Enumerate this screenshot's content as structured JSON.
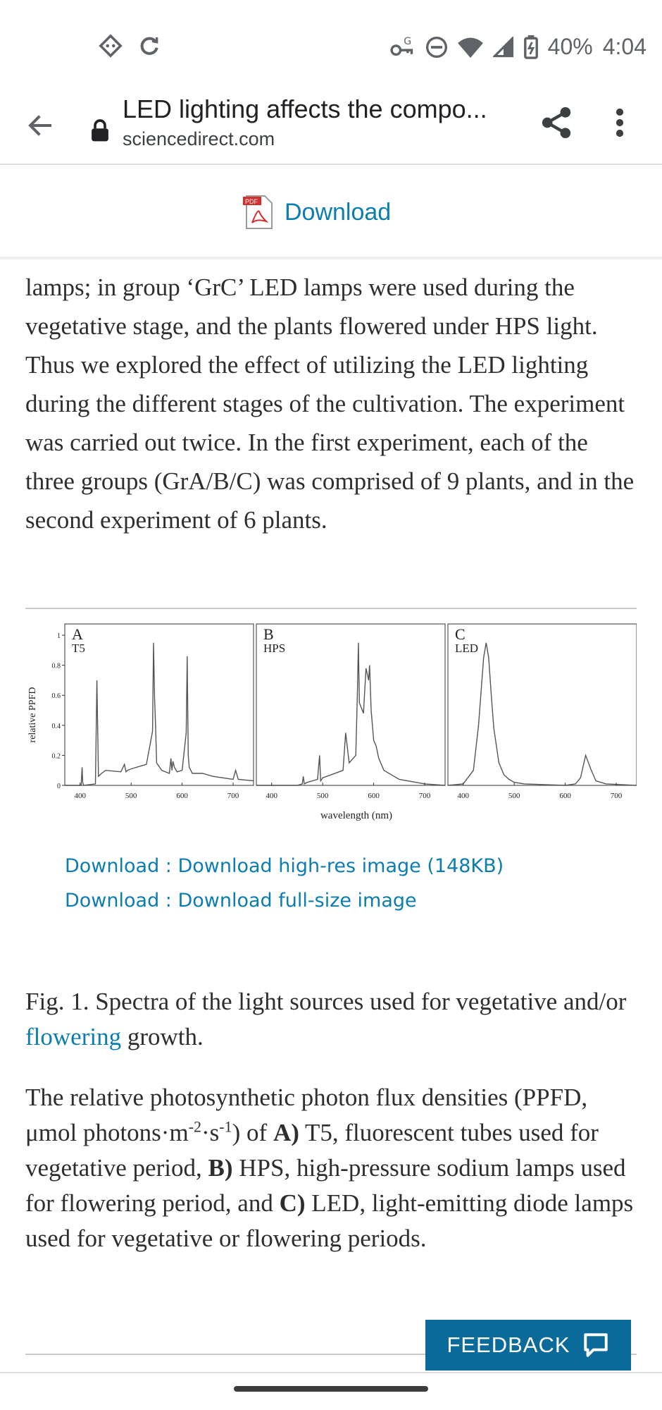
{
  "status_bar": {
    "battery": "40%",
    "time": "4:04",
    "icons": [
      "tag-icon",
      "sync-icon",
      "vpn-key-icon",
      "dnd-icon",
      "wifi-icon",
      "signal-icon",
      "battery-icon"
    ]
  },
  "browser": {
    "title": "LED lighting affects the compo...",
    "domain": "sciencedirect.com"
  },
  "download_bar": {
    "label": "Download",
    "pdf_badge": "PDF"
  },
  "article": {
    "paragraph": "lamps; in group ‘GrC’ LED lamps were used during the vegetative stage, and the plants flowered under HPS light. Thus we explored the effect of utilizing the LED lighting during the different stages of the cultivation. The experiment was carried out twice. In the first experiment, each of the three groups (GrA/B/C) was comprised of 9 plants, and in the second experiment of 6 plants."
  },
  "figure": {
    "links": {
      "high_res": "Download : Download high-res image (148KB)",
      "full_size": "Download : Download full-size image"
    },
    "caption_prefix": "Fig. 1. Spectra of the light sources used for vegetative and/or ",
    "caption_link": "flowering",
    "caption_suffix": " growth.",
    "description": {
      "p1": "The relative photosynthetic photon flux densities (PPFD, μmol photons·m",
      "sup1": "-2",
      "p2": "·s",
      "sup2": "-1",
      "p3": ") of ",
      "bold_a": "A)",
      "p4": " T5, fluorescent tubes used for vegetative period, ",
      "bold_b": "B)",
      "p5": " HPS, high-pressure sodium lamps used for flowering period, and ",
      "bold_c": "C)",
      "p6": " LED, light-emitting diode lamps used for vegetative or flowering periods."
    }
  },
  "chart_data": {
    "type": "line",
    "ylabel": "relative PPFD",
    "xlabel": "wavelength (nm)",
    "ylim": [
      0,
      1
    ],
    "yticks": [
      "0",
      "0.2",
      "0.4",
      "0.6",
      "0.8",
      "1"
    ],
    "xticks": [
      "400",
      "500",
      "600",
      "700"
    ],
    "panels": [
      {
        "letter": "A",
        "name": "T5",
        "x": [
          370,
          402,
          404,
          405,
          407,
          430,
          433,
          436,
          439,
          442,
          450,
          480,
          487,
          490,
          493,
          500,
          530,
          542,
          544,
          546,
          548,
          550,
          560,
          575,
          578,
          580,
          582,
          585,
          590,
          600,
          608,
          610,
          611,
          612,
          614,
          620,
          640,
          660,
          700,
          705,
          710,
          740
        ],
        "y": [
          0,
          0,
          0.12,
          0.02,
          0,
          0.01,
          0.7,
          0.06,
          0.07,
          0.08,
          0.1,
          0.09,
          0.14,
          0.09,
          0.1,
          0.11,
          0.14,
          0.36,
          0.95,
          0.58,
          0.4,
          0.15,
          0.1,
          0.08,
          0.18,
          0.1,
          0.16,
          0.12,
          0.09,
          0.1,
          0.35,
          0.86,
          0.5,
          0.2,
          0.12,
          0.08,
          0.08,
          0.06,
          0.04,
          0.1,
          0.04,
          0.03
        ]
      },
      {
        "letter": "B",
        "name": "HPS",
        "x": [
          370,
          450,
          460,
          462,
          464,
          470,
          490,
          494,
          496,
          500,
          540,
          545,
          552,
          565,
          568,
          570,
          572,
          580,
          585,
          590,
          592,
          595,
          600,
          605,
          610,
          615,
          620,
          650,
          700,
          740
        ],
        "y": [
          0,
          0,
          0.01,
          0.06,
          0.01,
          0.02,
          0.04,
          0.2,
          0.03,
          0.05,
          0.1,
          0.35,
          0.15,
          0.2,
          0.6,
          0.95,
          0.55,
          0.48,
          0.78,
          0.7,
          0.8,
          0.5,
          0.3,
          0.26,
          0.18,
          0.14,
          0.1,
          0.04,
          0.01,
          0
        ]
      },
      {
        "letter": "C",
        "name": "LED",
        "x": [
          370,
          400,
          420,
          430,
          440,
          445,
          450,
          455,
          460,
          470,
          480,
          490,
          500,
          520,
          600,
          620,
          630,
          640,
          650,
          660,
          680,
          740
        ],
        "y": [
          0,
          0.01,
          0.1,
          0.4,
          0.85,
          0.95,
          0.85,
          0.6,
          0.38,
          0.15,
          0.07,
          0.04,
          0.02,
          0.01,
          0,
          0.01,
          0.05,
          0.2,
          0.11,
          0.03,
          0.01,
          0
        ]
      }
    ]
  },
  "feedback": {
    "label": "FEEDBACK"
  }
}
